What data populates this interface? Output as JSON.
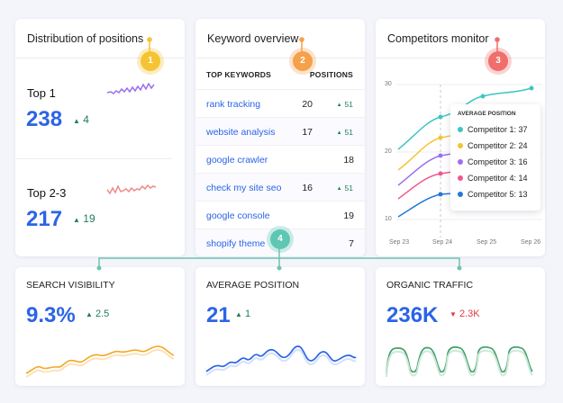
{
  "distribution": {
    "title": "Distribution of positions",
    "badge": "1",
    "top1": {
      "label": "Top 1",
      "value": "238",
      "delta": "4"
    },
    "top23": {
      "label": "Top 2-3",
      "value": "217",
      "delta": "19"
    }
  },
  "keywords": {
    "title": "Keyword overview",
    "badge": "2",
    "col_keywords": "TOP KEYWORDS",
    "col_positions": "POSITIONS",
    "rows": [
      {
        "keyword": "rank tracking",
        "position": "20",
        "change": "51"
      },
      {
        "keyword": "website analysis",
        "position": "17",
        "change": "51"
      },
      {
        "keyword": "google crawler",
        "position": "18",
        "change": ""
      },
      {
        "keyword": "check my site seo",
        "position": "16",
        "change": "51"
      },
      {
        "keyword": "google console",
        "position": "19",
        "change": ""
      },
      {
        "keyword": "shopify theme",
        "position": "7",
        "change": ""
      }
    ]
  },
  "competitors": {
    "title": "Competitors monitor",
    "badge": "3",
    "legend_title": "AVERAGE POSITION",
    "legend": [
      {
        "name": "Competitor 1",
        "value": "37",
        "color": "#3cc6c0"
      },
      {
        "name": "Competitor 2",
        "value": "24",
        "color": "#f5c433"
      },
      {
        "name": "Competitor 3",
        "value": "16",
        "color": "#9b6ff0"
      },
      {
        "name": "Competitor 4",
        "value": "14",
        "color": "#f0568f"
      },
      {
        "name": "Competitor 5",
        "value": "13",
        "color": "#2477d6"
      }
    ],
    "y_ticks": [
      "30",
      "20",
      "10"
    ],
    "x_ticks": [
      "Sep 23",
      "Sep 24",
      "Sep 25",
      "Sep 26"
    ]
  },
  "connector_badge": "4",
  "visibility": {
    "title": "SEARCH VISIBILITY",
    "value": "9.3%",
    "delta": "2.5"
  },
  "avg_position": {
    "title": "AVERAGE POSITION",
    "value": "21",
    "delta": "1"
  },
  "traffic": {
    "title": "ORGANIC TRAFFIC",
    "value": "236K",
    "delta": "2.3K"
  },
  "colors": {
    "accent_blue": "#2b64e6",
    "positive": "#1d7f56",
    "negative": "#e0393e",
    "badge1": "#f5c433",
    "badge2": "#f5a04b",
    "badge3": "#f06e6b",
    "badge4": "#5ec7b3"
  }
}
